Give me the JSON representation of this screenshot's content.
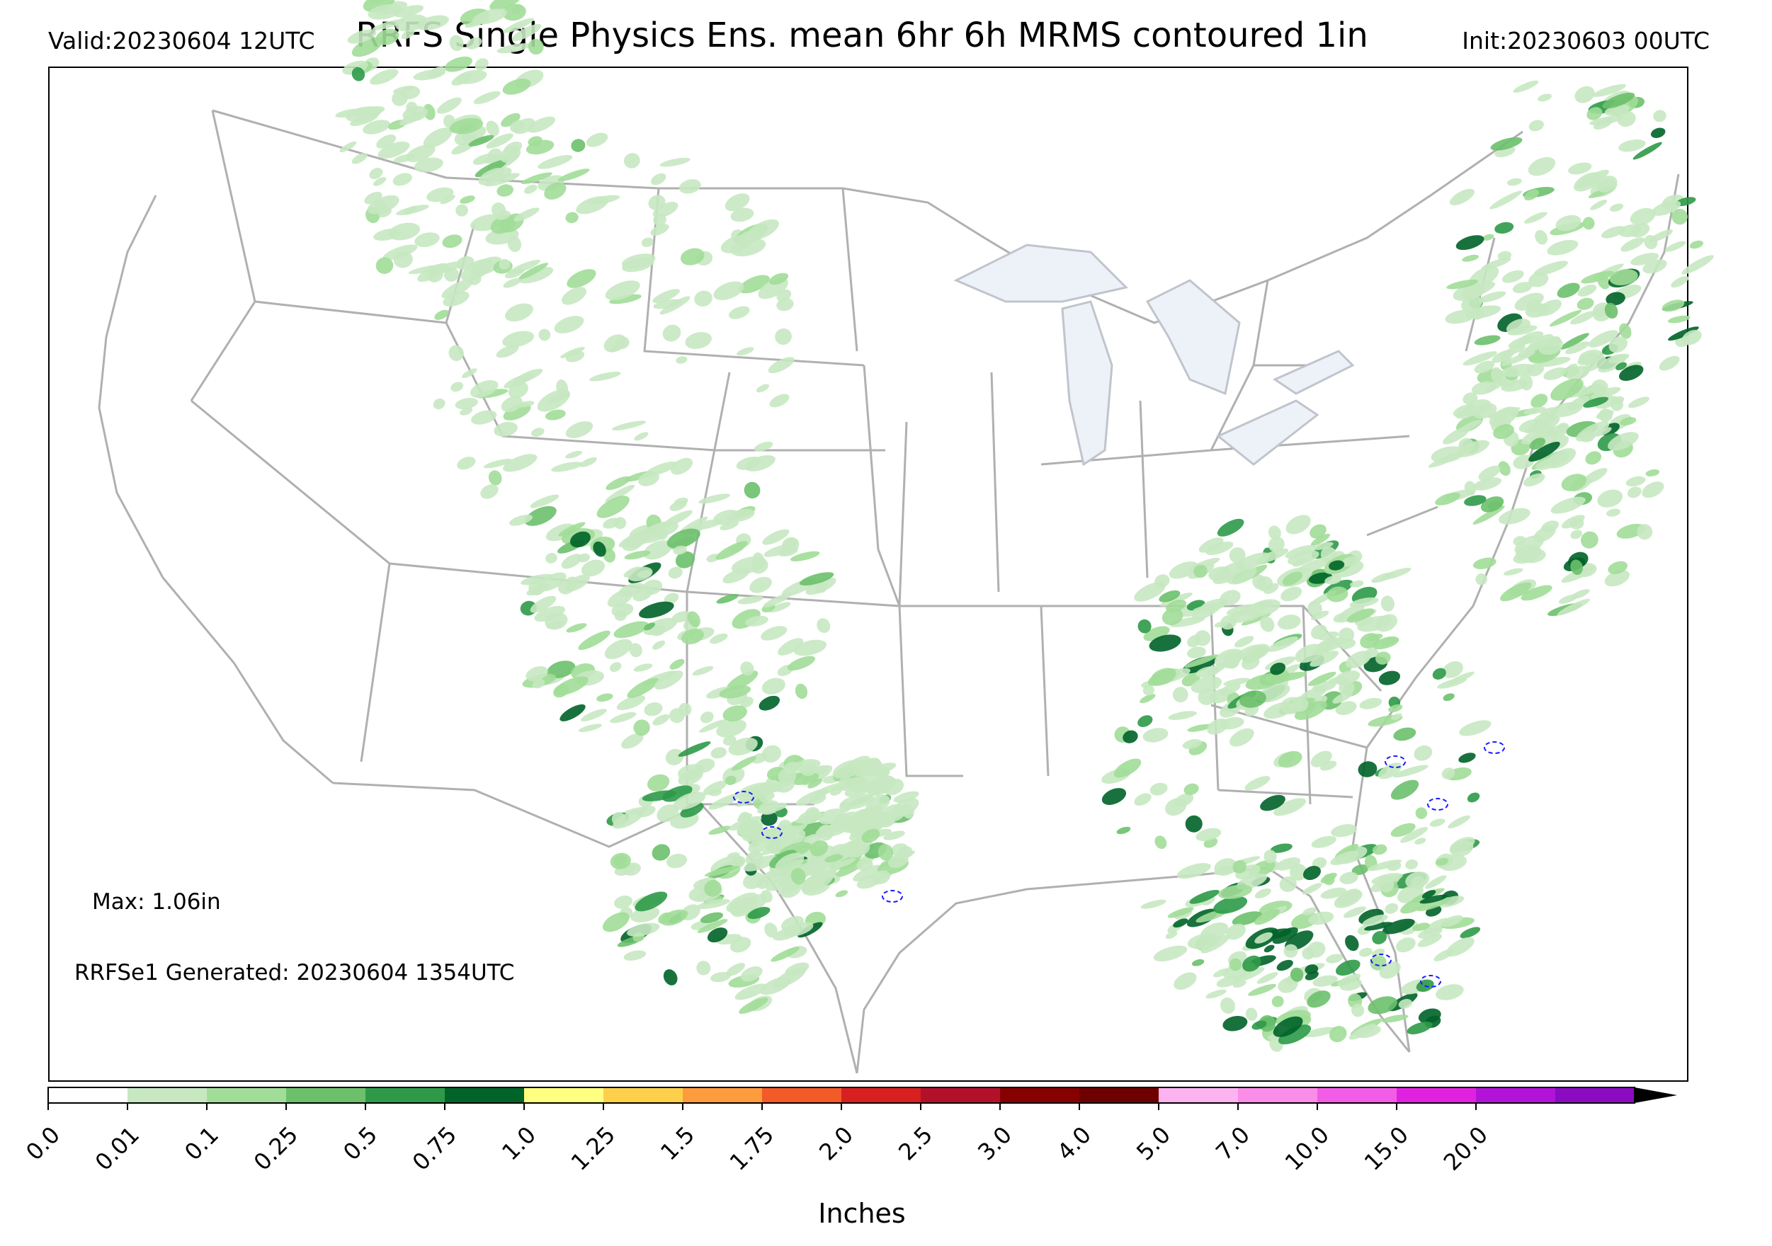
{
  "header": {
    "valid": "Valid:20230604 12UTC",
    "title": "RRFS Single Physics Ens. mean 6hr 6h MRMS contoured 1in",
    "init": "Init:20230603 00UTC"
  },
  "annotations": {
    "max": "Max: 1.06in",
    "generated": "RRFSe1 Generated: 20230604 1354UTC"
  },
  "colorbar": {
    "label": "Inches",
    "ticks": [
      "0.0",
      "0.01",
      "0.1",
      "0.25",
      "0.5",
      "0.75",
      "1.0",
      "1.25",
      "1.5",
      "1.75",
      "2.0",
      "2.5",
      "3.0",
      "4.0",
      "5.0",
      "7.0",
      "10.0",
      "15.0",
      "20.0"
    ],
    "colors": [
      "#ffffff",
      "#c7e8c1",
      "#a1dd98",
      "#6cc06b",
      "#2e9a48",
      "#006328",
      "#ffff80",
      "#fdd04c",
      "#fd9b3d",
      "#f25a27",
      "#d92020",
      "#b3102a",
      "#870000",
      "#6e0000",
      "#fbb4f0",
      "#f98de8",
      "#f25ce6",
      "#e022e0",
      "#b313d8",
      "#8a0bc2"
    ],
    "extend": "max"
  },
  "map": {
    "land_border_color": "#b0b0b0",
    "coast_color": "#a6a6a6",
    "lake_fill": "#edf1f8",
    "mrms_contour_color": "#1a1aff",
    "mrms_threshold": "1in"
  }
}
